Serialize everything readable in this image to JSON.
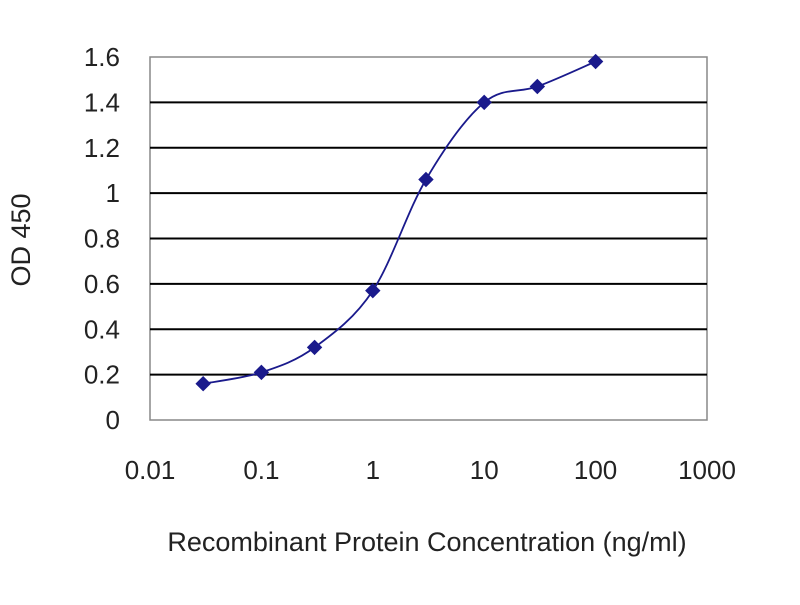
{
  "chart_data": {
    "type": "scatter",
    "title": "",
    "xlabel": "Recombinant Protein Concentration (ng/ml)",
    "ylabel": "OD 450",
    "x_scale": "log",
    "xlim": [
      0.01,
      1000
    ],
    "ylim": [
      0,
      1.6
    ],
    "x_ticks": [
      0.01,
      0.1,
      1,
      10,
      100,
      1000
    ],
    "x_tick_labels": [
      "0.01",
      "0.1",
      "1",
      "10",
      "100",
      "1000"
    ],
    "y_ticks": [
      0,
      0.2,
      0.4,
      0.6,
      0.8,
      1,
      1.2,
      1.4,
      1.6
    ],
    "y_tick_labels": [
      "0",
      "0.2",
      "0.4",
      "0.6",
      "0.8",
      "1",
      "1.2",
      "1.4",
      "1.6"
    ],
    "grid": "horizontal",
    "legend": "none",
    "series": [
      {
        "x": [
          0.03,
          0.1,
          0.3,
          1,
          3,
          10,
          30,
          100
        ],
        "y": [
          0.16,
          0.21,
          0.32,
          0.57,
          1.06,
          1.4,
          1.47,
          1.58
        ],
        "marker": "diamond",
        "fit_line": "smooth"
      }
    ],
    "colors": {
      "series": "#1a1a8c",
      "grid": "#000000",
      "frame": "#888888"
    }
  }
}
